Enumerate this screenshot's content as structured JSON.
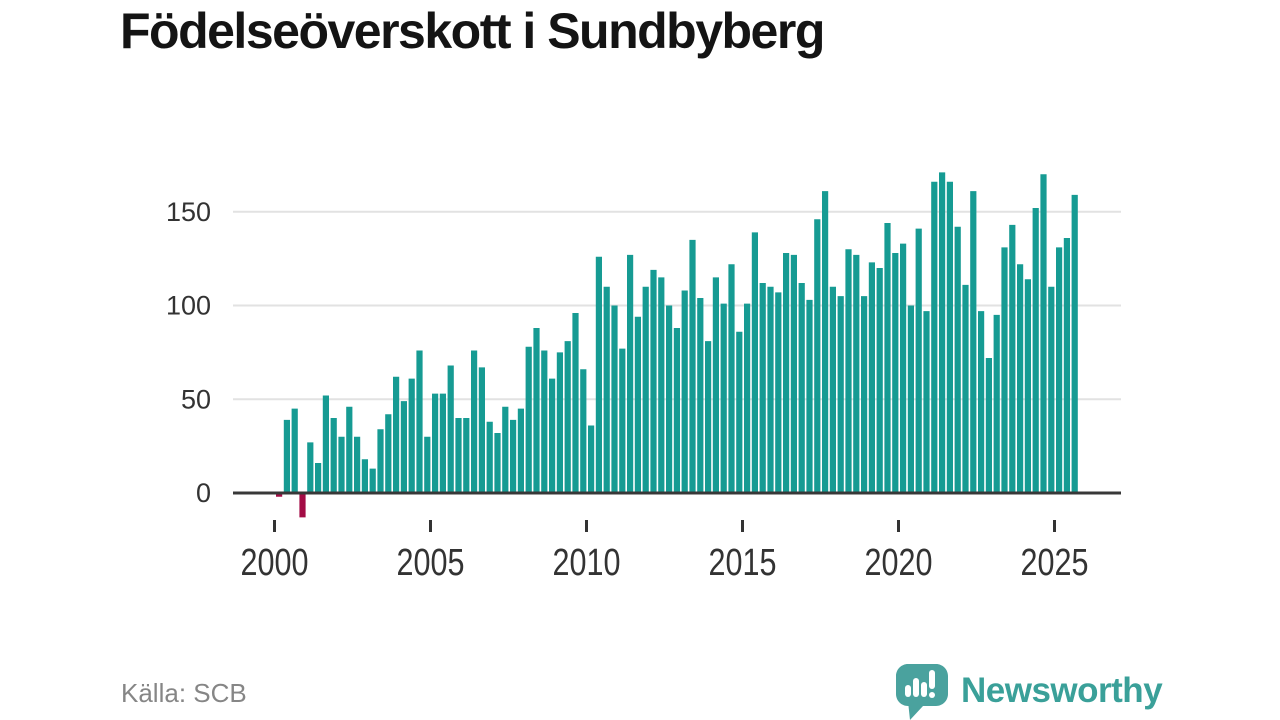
{
  "title": "Födelseöverskott i Sundbyberg",
  "source": "Källa: SCB",
  "branding": {
    "name": "Newsworthy"
  },
  "chart_data": {
    "type": "bar",
    "title": "Födelseöverskott i Sundbyberg",
    "frequency": "quarterly",
    "start_period": "2000-Q1",
    "end_period": "2025-Q3",
    "x_tick_labels": [
      "2000",
      "2005",
      "2010",
      "2015",
      "2020",
      "2025"
    ],
    "x_tick_years": [
      2000,
      2005,
      2010,
      2015,
      2020,
      2025
    ],
    "y_ticks": [
      0,
      50,
      100,
      150
    ],
    "ylim": [
      -20,
      180
    ],
    "grid": true,
    "legend": "none",
    "colors": {
      "bar_positive": "#169B93",
      "bar_negative": "#A30C45",
      "brand_teal": "#3AA099",
      "brand_icon": "#4AA29E"
    },
    "series": [
      {
        "name": "Födelseöverskott",
        "values": [
          -2,
          39,
          45,
          -13,
          27,
          16,
          52,
          40,
          30,
          46,
          30,
          18,
          13,
          34,
          42,
          62,
          49,
          61,
          76,
          30,
          53,
          53,
          68,
          40,
          40,
          76,
          67,
          38,
          32,
          46,
          39,
          45,
          78,
          88,
          76,
          61,
          75,
          81,
          96,
          66,
          36,
          126,
          110,
          100,
          77,
          127,
          94,
          110,
          119,
          115,
          100,
          88,
          108,
          135,
          104,
          81,
          115,
          101,
          122,
          86,
          101,
          139,
          112,
          110,
          107,
          128,
          127,
          112,
          103,
          146,
          161,
          110,
          105,
          130,
          127,
          105,
          123,
          120,
          144,
          128,
          133,
          100,
          141,
          97,
          166,
          171,
          166,
          142,
          111,
          161,
          97,
          72,
          95,
          131,
          143,
          122,
          114,
          152,
          170,
          110,
          131,
          136,
          159
        ]
      }
    ]
  }
}
